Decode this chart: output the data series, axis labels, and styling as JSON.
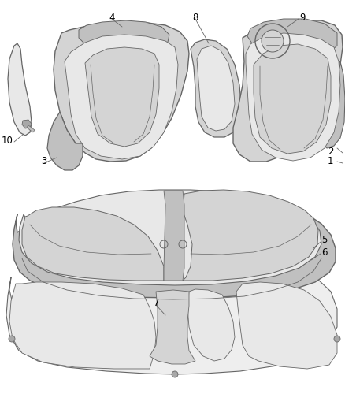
{
  "background_color": "#ffffff",
  "line_color": "#666666",
  "fill_light": "#e8e8e8",
  "fill_mid": "#d4d4d4",
  "fill_dark": "#c0c0c0",
  "fill_darker": "#a8a8a8",
  "label_color": "#000000",
  "label_fontsize": 8.5,
  "figsize": [
    4.38,
    5.33
  ],
  "dpi": 100
}
